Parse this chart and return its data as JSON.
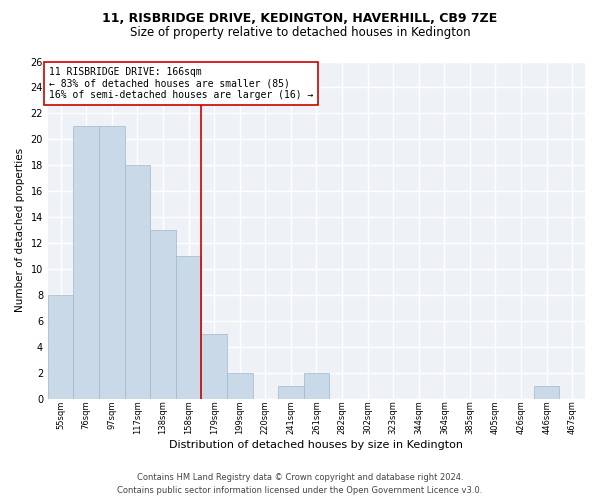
{
  "title": "11, RISBRIDGE DRIVE, KEDINGTON, HAVERHILL, CB9 7ZE",
  "subtitle": "Size of property relative to detached houses in Kedington",
  "xlabel": "Distribution of detached houses by size in Kedington",
  "ylabel": "Number of detached properties",
  "bar_labels": [
    "55sqm",
    "76sqm",
    "97sqm",
    "117sqm",
    "138sqm",
    "158sqm",
    "179sqm",
    "199sqm",
    "220sqm",
    "241sqm",
    "261sqm",
    "282sqm",
    "302sqm",
    "323sqm",
    "344sqm",
    "364sqm",
    "385sqm",
    "405sqm",
    "426sqm",
    "446sqm",
    "467sqm"
  ],
  "bar_values": [
    8,
    21,
    21,
    18,
    13,
    11,
    5,
    2,
    0,
    1,
    2,
    0,
    0,
    0,
    0,
    0,
    0,
    0,
    0,
    1,
    0
  ],
  "bar_color": "#c9d9e8",
  "bar_edgecolor": "#a0b8cc",
  "vline_x_idx": 5.5,
  "vline_color": "#cc0000",
  "annotation_text": "11 RISBRIDGE DRIVE: 166sqm\n← 83% of detached houses are smaller (85)\n16% of semi-detached houses are larger (16) →",
  "annotation_box_edgecolor": "#cc0000",
  "ylim": [
    0,
    26
  ],
  "yticks": [
    0,
    2,
    4,
    6,
    8,
    10,
    12,
    14,
    16,
    18,
    20,
    22,
    24,
    26
  ],
  "footer": "Contains HM Land Registry data © Crown copyright and database right 2024.\nContains public sector information licensed under the Open Government Licence v3.0.",
  "bg_color": "#eef2f7",
  "grid_color": "#ffffff",
  "title_fontsize": 9,
  "subtitle_fontsize": 8.5,
  "annotation_fontsize": 7,
  "footer_fontsize": 6,
  "ylabel_fontsize": 7.5,
  "xlabel_fontsize": 8
}
